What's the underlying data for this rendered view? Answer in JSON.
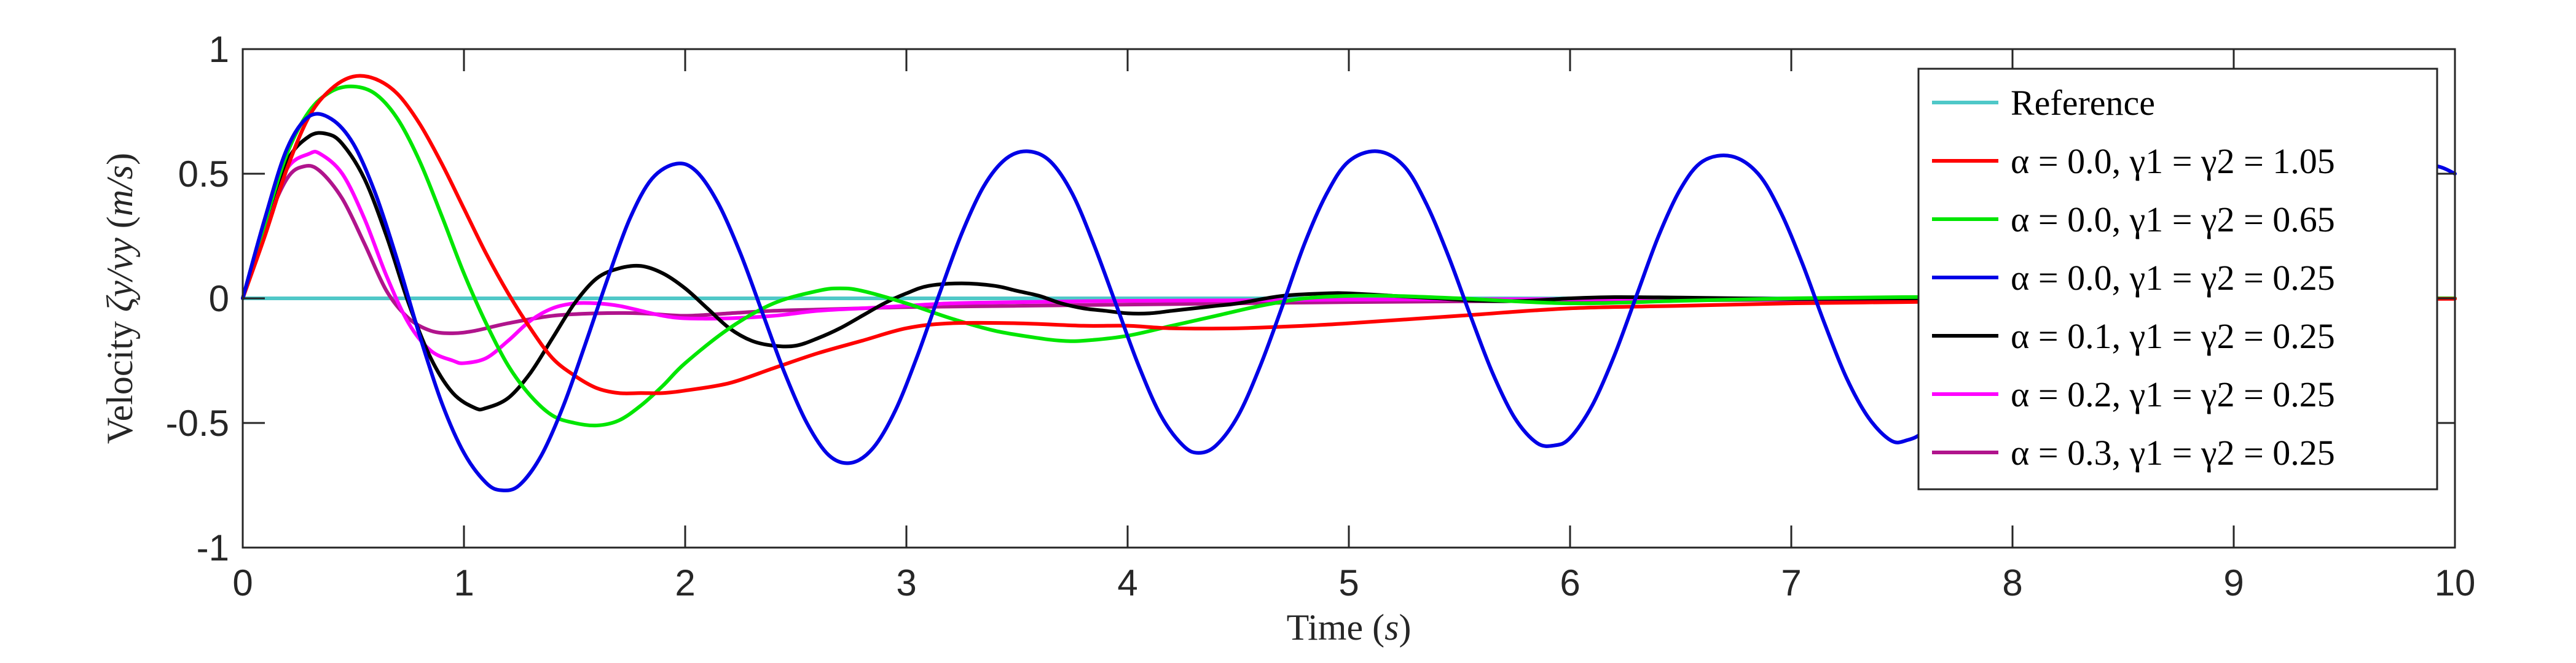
{
  "chart_data": {
    "type": "line",
    "title": "",
    "xlabel": "Time",
    "xlabel_unit": "s",
    "ylabel": "Velocity",
    "ylabel_expr": "ζy/vy",
    "ylabel_unit": "m/s",
    "xlim": [
      0,
      10
    ],
    "ylim": [
      -1,
      1
    ],
    "xticks": [
      0,
      1,
      2,
      3,
      4,
      5,
      6,
      7,
      8,
      9,
      10
    ],
    "yticks": [
      -1,
      -0.5,
      0,
      0.5,
      1
    ],
    "ytick_labels": [
      "-1",
      "-0.5",
      "0",
      "0.5",
      "1"
    ],
    "grid": false,
    "legend_position": "top-right",
    "series": [
      {
        "name": "Reference",
        "color": "#4FC8C8",
        "x": [
          0,
          10
        ],
        "y": [
          0,
          0
        ]
      },
      {
        "name": "α = 0.0, γ1 = γ2 = 1.05",
        "color": "#FF0000",
        "x": [
          0,
          0.1,
          0.2,
          0.3,
          0.4,
          0.5,
          0.6,
          0.7,
          0.8,
          0.9,
          1.0,
          1.1,
          1.2,
          1.3,
          1.4,
          1.5,
          1.6,
          1.7,
          1.8,
          1.9,
          2.0,
          2.2,
          2.4,
          2.6,
          2.8,
          3.0,
          3.2,
          3.5,
          3.8,
          4.0,
          4.2,
          4.5,
          4.8,
          5.0,
          5.5,
          6.0,
          6.5,
          7.0,
          7.5,
          8.0,
          8.5,
          9.0,
          9.5,
          10.0
        ],
        "y": [
          0,
          0.25,
          0.52,
          0.73,
          0.84,
          0.89,
          0.88,
          0.82,
          0.7,
          0.54,
          0.36,
          0.18,
          0.02,
          -0.12,
          -0.24,
          -0.31,
          -0.36,
          -0.38,
          -0.38,
          -0.38,
          -0.37,
          -0.34,
          -0.28,
          -0.22,
          -0.17,
          -0.12,
          -0.1,
          -0.1,
          -0.11,
          -0.11,
          -0.12,
          -0.12,
          -0.11,
          -0.1,
          -0.07,
          -0.04,
          -0.03,
          -0.02,
          -0.015,
          -0.01,
          -0.008,
          -0.005,
          -0.003,
          -0.002
        ]
      },
      {
        "name": "α = 0.0, γ1 = γ2 = 0.65",
        "color": "#00E600",
        "x": [
          0,
          0.1,
          0.2,
          0.3,
          0.4,
          0.5,
          0.6,
          0.7,
          0.8,
          0.9,
          1.0,
          1.1,
          1.2,
          1.3,
          1.4,
          1.5,
          1.6,
          1.7,
          1.8,
          1.9,
          2.0,
          2.2,
          2.4,
          2.6,
          2.7,
          2.8,
          3.0,
          3.2,
          3.4,
          3.6,
          3.7,
          3.8,
          4.0,
          4.2,
          4.4,
          4.6,
          4.8,
          5.0,
          5.2,
          5.5,
          6.0,
          6.5,
          7.0,
          7.5,
          8.0,
          8.5,
          9.0,
          9.5,
          10.0
        ],
        "y": [
          0,
          0.3,
          0.58,
          0.75,
          0.83,
          0.85,
          0.82,
          0.72,
          0.55,
          0.33,
          0.1,
          -0.1,
          -0.27,
          -0.39,
          -0.47,
          -0.5,
          -0.51,
          -0.49,
          -0.43,
          -0.35,
          -0.26,
          -0.12,
          -0.02,
          0.03,
          0.04,
          0.03,
          -0.02,
          -0.08,
          -0.13,
          -0.16,
          -0.17,
          -0.17,
          -0.15,
          -0.11,
          -0.07,
          -0.03,
          0.0,
          0.01,
          0.01,
          0.0,
          -0.02,
          -0.01,
          0.0,
          0.005,
          0.003,
          0.0,
          -0.002,
          -0.001,
          0.0
        ]
      },
      {
        "name": "α = 0.0, γ1 = γ2 = 0.25",
        "color": "#0000E6",
        "x": [
          0,
          0.1,
          0.2,
          0.3,
          0.4,
          0.5,
          0.6,
          0.7,
          0.8,
          0.9,
          1.0,
          1.1,
          1.17,
          1.25,
          1.35,
          1.45,
          1.55,
          1.65,
          1.75,
          1.85,
          1.96,
          2.05,
          2.15,
          2.25,
          2.35,
          2.45,
          2.55,
          2.65,
          2.75,
          2.85,
          2.95,
          3.05,
          3.15,
          3.25,
          3.35,
          3.45,
          3.55,
          3.65,
          3.75,
          3.85,
          3.95,
          4.05,
          4.15,
          4.25,
          4.32,
          4.4,
          4.5,
          4.6,
          4.7,
          4.8,
          4.9,
          5.0,
          5.13,
          5.25,
          5.35,
          5.45,
          5.55,
          5.65,
          5.75,
          5.85,
          5.93,
          6.0,
          6.1,
          6.2,
          6.3,
          6.4,
          6.5,
          6.6,
          6.73,
          6.85,
          6.95,
          7.05,
          7.15,
          7.25,
          7.35,
          7.45,
          7.52,
          7.6,
          7.7,
          7.8,
          7.9,
          8.0,
          8.1,
          8.2,
          8.32,
          8.45,
          8.55,
          8.65,
          8.75,
          8.85,
          8.95,
          9.05,
          9.12,
          9.2,
          9.3,
          9.4,
          9.5,
          9.6,
          9.7,
          9.8,
          9.92,
          10.0
        ],
        "y": [
          0,
          0.32,
          0.6,
          0.73,
          0.72,
          0.62,
          0.42,
          0.15,
          -0.15,
          -0.42,
          -0.62,
          -0.74,
          -0.77,
          -0.75,
          -0.63,
          -0.43,
          -0.18,
          0.08,
          0.32,
          0.48,
          0.54,
          0.51,
          0.38,
          0.18,
          -0.06,
          -0.3,
          -0.5,
          -0.63,
          -0.66,
          -0.6,
          -0.45,
          -0.23,
          0.02,
          0.26,
          0.45,
          0.56,
          0.59,
          0.55,
          0.42,
          0.21,
          -0.03,
          -0.27,
          -0.47,
          -0.59,
          -0.62,
          -0.59,
          -0.47,
          -0.27,
          -0.03,
          0.22,
          0.42,
          0.55,
          0.59,
          0.53,
          0.38,
          0.17,
          -0.07,
          -0.3,
          -0.48,
          -0.58,
          -0.59,
          -0.56,
          -0.43,
          -0.23,
          0.01,
          0.25,
          0.44,
          0.55,
          0.57,
          0.5,
          0.35,
          0.14,
          -0.1,
          -0.32,
          -0.48,
          -0.57,
          -0.57,
          -0.53,
          -0.39,
          -0.19,
          0.05,
          0.28,
          0.45,
          0.54,
          0.55,
          0.47,
          0.32,
          0.11,
          -0.13,
          -0.34,
          -0.49,
          -0.56,
          -0.55,
          -0.5,
          -0.36,
          -0.15,
          0.09,
          0.31,
          0.46,
          0.53,
          0.53,
          0.5
        ]
      },
      {
        "name": "α = 0.1, γ1 = γ2 = 0.25",
        "color": "#000000",
        "x": [
          0,
          0.1,
          0.2,
          0.3,
          0.38,
          0.45,
          0.55,
          0.65,
          0.75,
          0.85,
          0.95,
          1.05,
          1.1,
          1.2,
          1.3,
          1.4,
          1.5,
          1.6,
          1.7,
          1.8,
          1.9,
          2.0,
          2.1,
          2.2,
          2.3,
          2.4,
          2.5,
          2.6,
          2.7,
          2.8,
          2.9,
          3.0,
          3.1,
          3.25,
          3.4,
          3.5,
          3.6,
          3.7,
          3.8,
          3.9,
          4.0,
          4.1,
          4.2,
          4.3,
          4.4,
          4.5,
          4.7,
          4.9,
          5.0,
          5.2,
          5.4,
          5.6,
          5.8,
          6.0,
          6.2,
          6.5,
          7.0,
          7.5,
          8.0,
          8.5,
          9.0,
          9.5,
          10.0
        ],
        "y": [
          0,
          0.3,
          0.55,
          0.65,
          0.66,
          0.62,
          0.48,
          0.25,
          -0.02,
          -0.24,
          -0.38,
          -0.44,
          -0.44,
          -0.4,
          -0.3,
          -0.16,
          -0.02,
          0.08,
          0.12,
          0.13,
          0.1,
          0.04,
          -0.04,
          -0.12,
          -0.17,
          -0.19,
          -0.19,
          -0.16,
          -0.12,
          -0.07,
          -0.02,
          0.02,
          0.05,
          0.06,
          0.05,
          0.03,
          0.01,
          -0.02,
          -0.04,
          -0.05,
          -0.06,
          -0.06,
          -0.05,
          -0.04,
          -0.03,
          -0.02,
          0.01,
          0.02,
          0.02,
          0.01,
          0.0,
          -0.01,
          -0.01,
          0.0,
          0.005,
          0.003,
          -0.002,
          0.0,
          0.001,
          0.0,
          0.0,
          0.0,
          0.0
        ]
      },
      {
        "name": "α = 0.2, γ1 = γ2 = 0.25",
        "color": "#FF00FF",
        "x": [
          0,
          0.1,
          0.2,
          0.3,
          0.35,
          0.45,
          0.55,
          0.65,
          0.75,
          0.85,
          0.95,
          1.0,
          1.1,
          1.2,
          1.3,
          1.4,
          1.5,
          1.6,
          1.7,
          1.8,
          1.9,
          2.0,
          2.2,
          2.4,
          2.6,
          2.8,
          3.0,
          3.2,
          3.5,
          4.0,
          4.5,
          5.0,
          5.5,
          6.0,
          6.5,
          7.0,
          7.5,
          8.0,
          9.0,
          10.0
        ],
        "y": [
          0,
          0.3,
          0.52,
          0.58,
          0.58,
          0.5,
          0.32,
          0.09,
          -0.1,
          -0.21,
          -0.25,
          -0.26,
          -0.24,
          -0.17,
          -0.09,
          -0.04,
          -0.02,
          -0.02,
          -0.03,
          -0.05,
          -0.07,
          -0.08,
          -0.08,
          -0.07,
          -0.05,
          -0.04,
          -0.03,
          -0.02,
          -0.015,
          -0.01,
          -0.008,
          -0.005,
          -0.004,
          -0.003,
          -0.002,
          -0.001,
          0.0,
          0.0,
          0.0,
          0.0
        ]
      },
      {
        "name": "α = 0.3, γ1 = γ2 = 0.25",
        "color": "#B0148C",
        "x": [
          0,
          0.1,
          0.2,
          0.28,
          0.35,
          0.45,
          0.55,
          0.65,
          0.75,
          0.85,
          0.95,
          1.05,
          1.2,
          1.4,
          1.6,
          1.8,
          2.0,
          2.2,
          2.4,
          2.6,
          2.8,
          3.0,
          3.5,
          4.0,
          4.5,
          5.0,
          5.5,
          6.0,
          7.0,
          8.0,
          9.0,
          10.0
        ],
        "y": [
          0,
          0.28,
          0.48,
          0.53,
          0.51,
          0.4,
          0.22,
          0.03,
          -0.08,
          -0.13,
          -0.14,
          -0.13,
          -0.1,
          -0.07,
          -0.06,
          -0.06,
          -0.07,
          -0.06,
          -0.05,
          -0.045,
          -0.04,
          -0.035,
          -0.03,
          -0.025,
          -0.02,
          -0.015,
          -0.012,
          -0.01,
          -0.006,
          -0.004,
          -0.002,
          -0.001
        ]
      }
    ]
  }
}
